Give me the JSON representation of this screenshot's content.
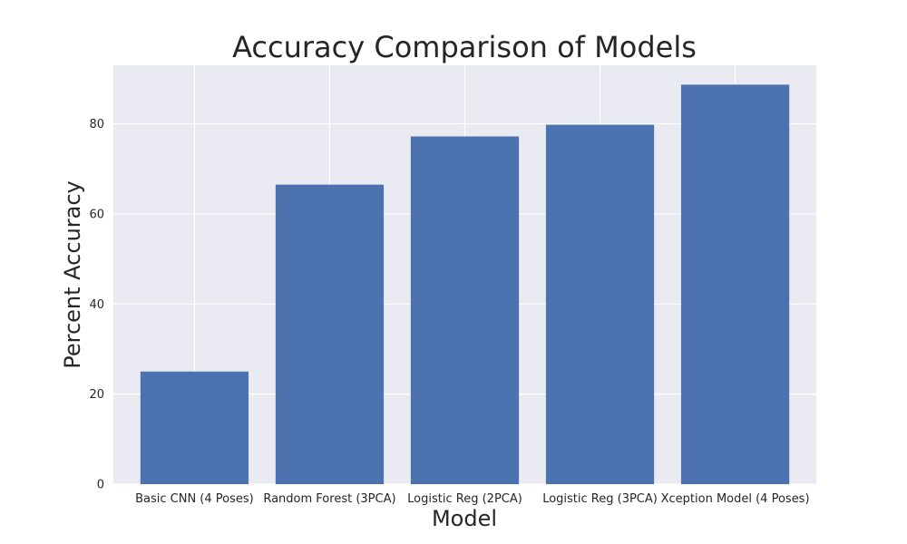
{
  "chart_data": {
    "type": "bar",
    "title": "Accuracy Comparison of Models",
    "xlabel": "Model",
    "ylabel": "Percent Accuracy",
    "categories": [
      "Basic CNN (4 Poses)",
      "Random Forest (3PCA)",
      "Logistic Reg (2PCA)",
      "Logistic Reg (3PCA)",
      "Xception Model (4 Poses)"
    ],
    "values": [
      25.0,
      66.5,
      77.2,
      79.8,
      88.7
    ],
    "ylim": [
      0,
      93
    ],
    "yticks": [
      0,
      20,
      40,
      60,
      80
    ],
    "grid": true,
    "bar_color": "#4c72b0",
    "plot_background": "#eaeaf2",
    "grid_color": "#ffffff"
  }
}
